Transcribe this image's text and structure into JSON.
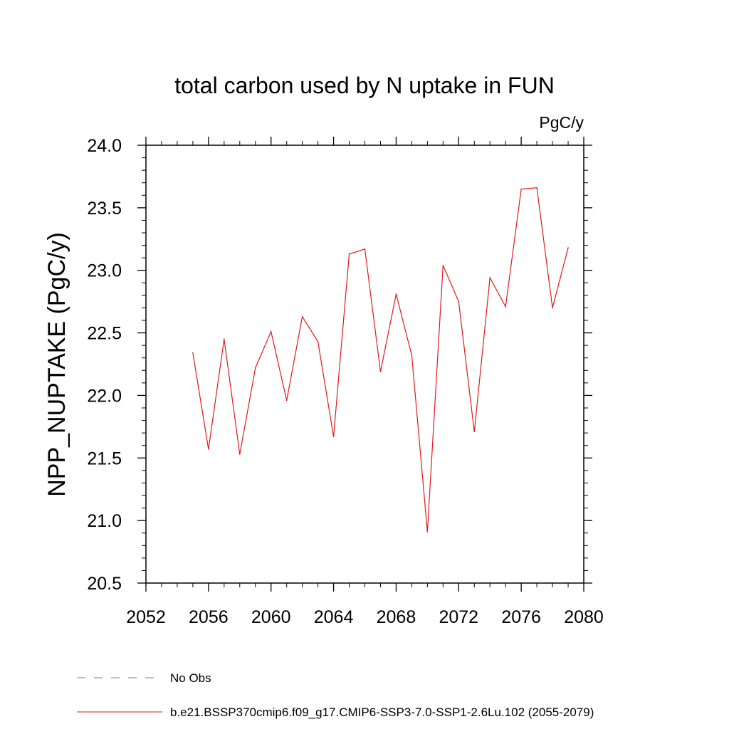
{
  "chart_data": {
    "type": "line",
    "title": "total carbon used by N uptake in FUN",
    "units": "PgC/y",
    "ylabel": "NPP_NUPTAKE  (PgC/y)",
    "xlabel": "",
    "xlim": [
      2052,
      2080
    ],
    "ylim": [
      20.5,
      24.0
    ],
    "x_ticks": [
      2052,
      2056,
      2060,
      2064,
      2068,
      2072,
      2076,
      2080
    ],
    "y_ticks": [
      20.5,
      21.0,
      21.5,
      22.0,
      22.5,
      23.0,
      23.5,
      24.0
    ],
    "y_tick_labels": [
      "20.5",
      "21.0",
      "21.5",
      "22.0",
      "22.5",
      "23.0",
      "23.5",
      "24.0"
    ],
    "grid": false,
    "series": [
      {
        "name": "b.e21.BSSP370cmip6.f09_g17.CMIP6-SSP3-7.0-SSP1-2.6Lu.102 (2055-2079)",
        "color": "#e0191c",
        "x": [
          2055,
          2056,
          2057,
          2058,
          2059,
          2060,
          2061,
          2062,
          2063,
          2064,
          2065,
          2066,
          2067,
          2068,
          2069,
          2070,
          2071,
          2072,
          2073,
          2074,
          2075,
          2076,
          2077,
          2078,
          2079
        ],
        "y": [
          22.34,
          21.57,
          22.45,
          21.53,
          22.22,
          22.51,
          21.96,
          22.63,
          22.43,
          21.67,
          23.13,
          23.17,
          22.19,
          22.81,
          22.32,
          20.91,
          23.04,
          22.75,
          21.71,
          22.94,
          22.71,
          23.65,
          23.66,
          22.7,
          23.18
        ]
      }
    ],
    "legend": [
      {
        "label": "No Obs",
        "style": "dashed",
        "color": "#7a6fd0"
      },
      {
        "label": "b.e21.BSSP370cmip6.f09_g17.CMIP6-SSP3-7.0-SSP1-2.6Lu.102 (2055-2079)",
        "style": "solid",
        "color": "#e0191c"
      }
    ],
    "legend_position": "bottom-left"
  }
}
